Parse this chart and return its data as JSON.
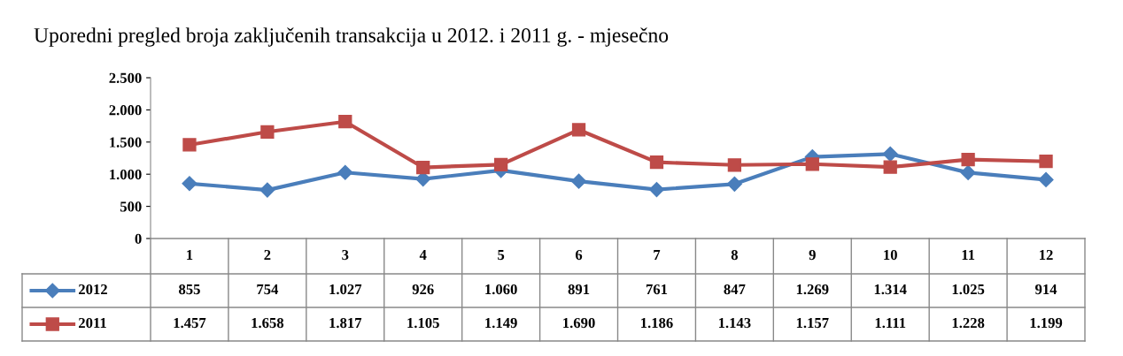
{
  "chart_data": {
    "type": "line",
    "title": "Uporedni pregled broja zaključenih transakcija u 2012. i 2011 g. - mjesečno",
    "categories": [
      "1",
      "2",
      "3",
      "4",
      "5",
      "6",
      "7",
      "8",
      "9",
      "10",
      "11",
      "12"
    ],
    "series": [
      {
        "name": "2012",
        "color": "#4a7ebb",
        "marker": "diamond",
        "values": [
          855,
          754,
          1027,
          926,
          1060,
          891,
          761,
          847,
          1269,
          1314,
          1025,
          914
        ],
        "value_labels": [
          "855",
          "754",
          "1.027",
          "926",
          "1.060",
          "891",
          "761",
          "847",
          "1.269",
          "1.314",
          "1.025",
          "914"
        ]
      },
      {
        "name": "2011",
        "color": "#be4b48",
        "marker": "square",
        "values": [
          1457,
          1658,
          1817,
          1105,
          1149,
          1690,
          1186,
          1143,
          1157,
          1111,
          1228,
          1199
        ],
        "value_labels": [
          "1.457",
          "1.658",
          "1.817",
          "1.105",
          "1.149",
          "1.690",
          "1.186",
          "1.143",
          "1.157",
          "1.111",
          "1.228",
          "1.199"
        ]
      }
    ],
    "ylim": [
      0,
      2500
    ],
    "yticks": [
      0,
      {
        "value": 500,
        "label": "500"
      },
      {
        "value": 1000,
        "label": "1.000"
      },
      {
        "value": 1500,
        "label": "1.500"
      },
      {
        "value": 2000,
        "label": "2.000"
      },
      {
        "value": 2500,
        "label": "2.500"
      }
    ],
    "grid": false,
    "legend": "bottom",
    "line_style": "solid"
  }
}
